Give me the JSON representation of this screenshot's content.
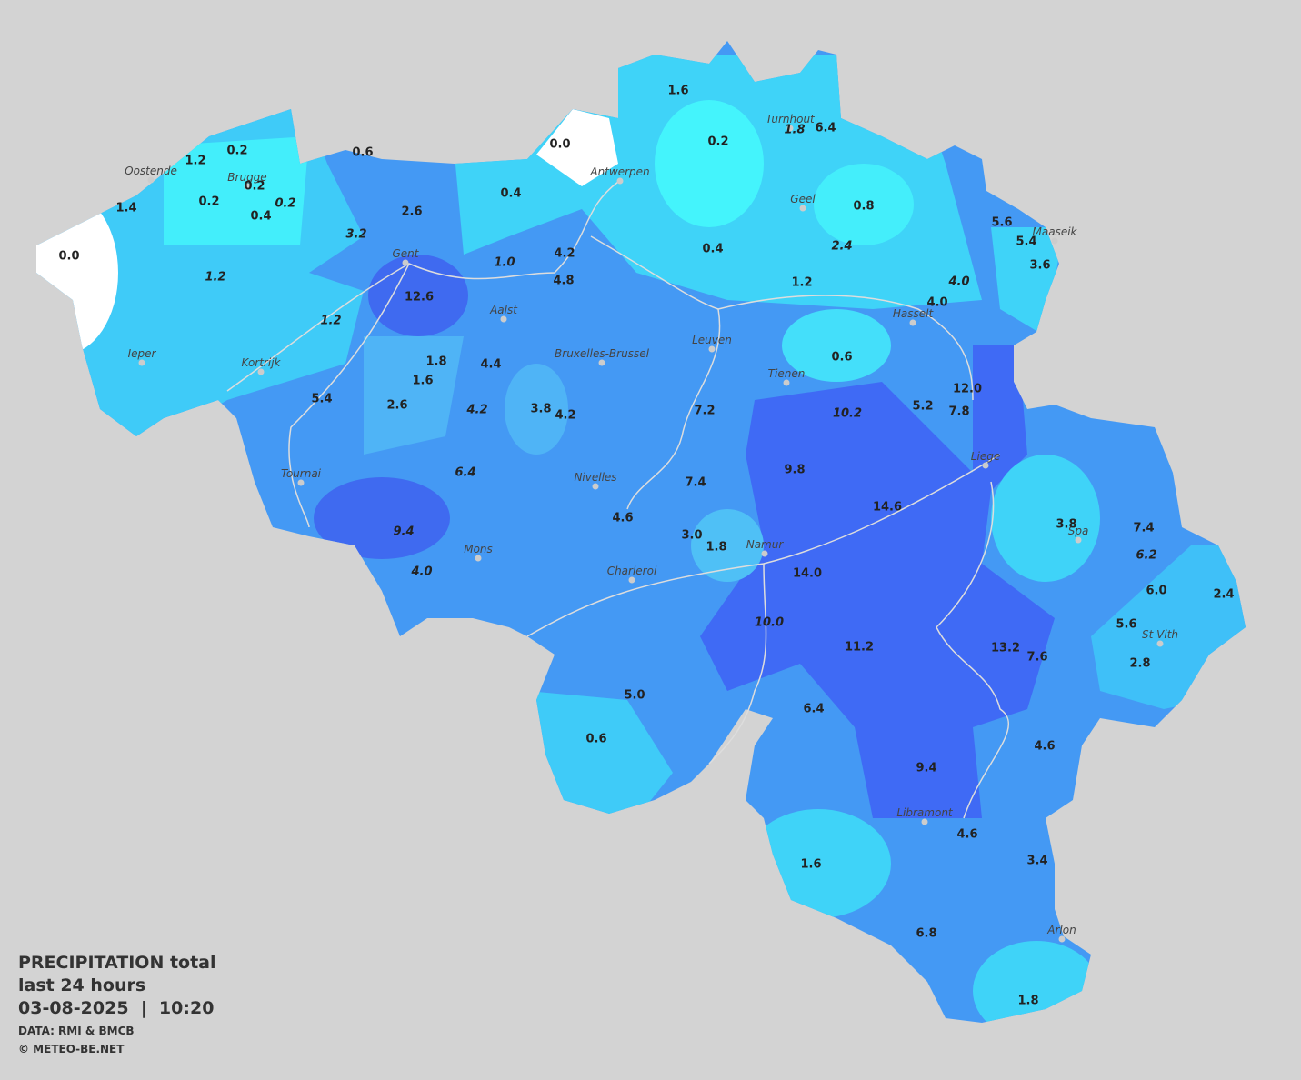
{
  "map": {
    "cities": [
      "Oostende",
      "Brugge",
      "Antwerpen",
      "Turnhout",
      "Geel",
      "Maaseik",
      "Gent",
      "Aalst",
      "Hasselt",
      "Leuven",
      "Ieper",
      "Kortrijk",
      "Bruxelles-Brussel",
      "Tienen",
      "Liege",
      "Tournai",
      "Nivelles",
      "Spa",
      "Mons",
      "Namur",
      "Charleroi",
      "St-Vith",
      "Libramont",
      "Arlon"
    ],
    "values": [
      "1.6",
      "0.2",
      "1.2",
      "0.6",
      "0.0",
      "0.2",
      "1.8",
      "6.4",
      "0.2",
      "0.2",
      "0.4",
      "0.2",
      "1.4",
      "2.6",
      "0.4",
      "0.8",
      "5.6",
      "5.4",
      "3.2",
      "0.0",
      "4.2",
      "0.4",
      "2.4",
      "3.6",
      "1.0",
      "1.2",
      "4.8",
      "1.2",
      "4.0",
      "12.6",
      "4.0",
      "1.2",
      "1.8",
      "4.4",
      "0.6",
      "1.6",
      "12.0",
      "5.4",
      "2.6",
      "4.2",
      "3.8",
      "4.2",
      "7.2",
      "10.2",
      "5.2",
      "7.8",
      "6.4",
      "9.8",
      "7.4",
      "14.6",
      "4.6",
      "9.4",
      "3.0",
      "1.8",
      "3.8",
      "7.4",
      "6.2",
      "4.0",
      "14.0",
      "6.0",
      "2.4",
      "10.0",
      "5.6",
      "11.2",
      "13.2",
      "7.6",
      "2.8",
      "5.0",
      "6.4",
      "0.6",
      "4.6",
      "9.4",
      "4.6",
      "1.6",
      "3.4",
      "6.8",
      "1.8"
    ],
    "legend": {
      "title": "PRECIPITATION total",
      "period": "last 24 hours",
      "datetime": "03-08-2025  |  10:20",
      "source": "DATA: RMI & BMCB",
      "credit": "© METEO-BE.NET"
    }
  }
}
